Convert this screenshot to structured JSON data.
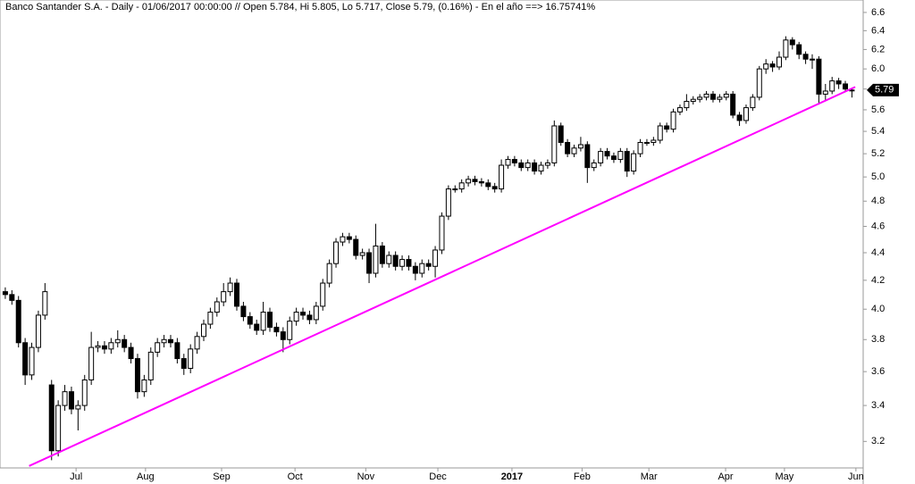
{
  "chart_data": {
    "type": "candlestick",
    "title": "Banco Santander S.A. - Daily - 01/06/2017 00:00:00 // Open 5.784, Hi 5.805, Lo 5.717, Close 5.79, (0.16%) - En el año ==> 16.75741%",
    "log_scale": true,
    "up_color": "#ffffff",
    "down_color": "#000000",
    "outline_color": "#000000",
    "open": [
      4.12,
      4.1,
      4.06,
      3.78,
      3.58,
      3.75,
      3.96,
      3.52,
      3.15,
      3.4,
      3.48,
      3.38,
      3.4,
      3.55,
      3.75,
      3.76,
      3.74,
      3.78,
      3.8,
      3.75,
      3.68,
      3.48,
      3.55,
      3.72,
      3.78,
      3.8,
      3.78,
      3.68,
      3.62,
      3.74,
      3.82,
      3.9,
      3.98,
      4.05,
      4.12,
      4.18,
      4.02,
      3.95,
      3.9,
      3.86,
      3.98,
      3.88,
      3.85,
      3.8,
      3.92,
      3.98,
      3.96,
      3.93,
      4.02,
      4.18,
      4.32,
      4.48,
      4.52,
      4.5,
      4.38,
      4.4,
      4.25,
      4.45,
      4.32,
      4.38,
      4.3,
      4.35,
      4.3,
      4.25,
      4.32,
      4.3,
      4.42,
      4.68,
      4.9,
      4.9,
      4.95,
      4.98,
      4.96,
      4.95,
      4.92,
      4.9,
      5.1,
      5.15,
      5.12,
      5.08,
      5.12,
      5.05,
      5.1,
      5.12,
      5.45,
      5.3,
      5.2,
      5.25,
      5.28,
      5.08,
      5.12,
      5.22,
      5.18,
      5.15,
      5.22,
      5.05,
      5.2,
      5.3,
      5.3,
      5.32,
      5.45,
      5.42,
      5.58,
      5.62,
      5.68,
      5.7,
      5.72,
      5.75,
      5.7,
      5.72,
      5.75,
      5.55,
      5.5,
      5.62,
      5.72,
      6.0,
      6.05,
      6.02,
      6.12,
      6.3,
      6.25,
      6.15,
      6.1,
      6.1,
      5.75,
      5.78,
      5.88,
      5.85,
      5.784
    ],
    "high": [
      4.15,
      4.13,
      4.09,
      3.81,
      3.78,
      3.99,
      4.18,
      3.55,
      3.43,
      3.52,
      3.51,
      3.43,
      3.58,
      3.85,
      3.79,
      3.79,
      3.81,
      3.86,
      3.83,
      3.78,
      3.71,
      3.58,
      3.75,
      3.81,
      3.83,
      3.83,
      3.81,
      3.71,
      3.77,
      3.85,
      3.93,
      4.01,
      4.08,
      4.18,
      4.22,
      4.21,
      4.05,
      3.98,
      3.93,
      4.05,
      4.01,
      3.91,
      3.88,
      3.95,
      4.01,
      4.01,
      3.99,
      4.05,
      4.21,
      4.35,
      4.51,
      4.55,
      4.55,
      4.53,
      4.43,
      4.43,
      4.62,
      4.48,
      4.41,
      4.41,
      4.38,
      4.38,
      4.33,
      4.35,
      4.35,
      4.45,
      4.71,
      4.93,
      4.93,
      4.98,
      5.01,
      5.01,
      4.99,
      4.98,
      4.95,
      5.15,
      5.18,
      5.18,
      5.15,
      5.15,
      5.15,
      5.13,
      5.15,
      5.5,
      5.48,
      5.33,
      5.28,
      5.35,
      5.31,
      5.15,
      5.25,
      5.25,
      5.21,
      5.25,
      5.25,
      5.23,
      5.33,
      5.33,
      5.35,
      5.48,
      5.48,
      5.61,
      5.65,
      5.75,
      5.73,
      5.75,
      5.78,
      5.78,
      5.75,
      5.78,
      5.78,
      5.58,
      5.65,
      5.75,
      6.03,
      6.1,
      6.08,
      6.18,
      6.34,
      6.33,
      6.28,
      6.18,
      6.15,
      6.13,
      5.85,
      5.92,
      5.91,
      5.88,
      5.805
    ],
    "low": [
      4.07,
      4.03,
      3.75,
      3.52,
      3.55,
      3.72,
      3.93,
      3.1,
      3.12,
      3.37,
      3.35,
      3.26,
      3.37,
      3.52,
      3.72,
      3.71,
      3.71,
      3.75,
      3.72,
      3.65,
      3.44,
      3.45,
      3.52,
      3.69,
      3.75,
      3.75,
      3.65,
      3.58,
      3.59,
      3.71,
      3.79,
      3.87,
      3.95,
      4.02,
      4.09,
      3.99,
      3.92,
      3.87,
      3.83,
      3.83,
      3.85,
      3.82,
      3.72,
      3.77,
      3.89,
      3.93,
      3.9,
      3.9,
      3.99,
      4.15,
      4.29,
      4.45,
      4.47,
      4.35,
      4.35,
      4.18,
      4.22,
      4.29,
      4.29,
      4.27,
      4.27,
      4.27,
      4.2,
      4.22,
      4.27,
      4.22,
      4.39,
      4.65,
      4.87,
      4.87,
      4.92,
      4.93,
      4.92,
      4.89,
      4.87,
      4.87,
      5.07,
      5.09,
      5.05,
      5.05,
      5.02,
      5.02,
      5.07,
      5.09,
      5.27,
      5.17,
      5.17,
      5.22,
      4.95,
      5.05,
      5.09,
      5.15,
      5.12,
      5.12,
      5.0,
      5.02,
      5.17,
      5.27,
      5.27,
      5.29,
      5.39,
      5.39,
      5.55,
      5.59,
      5.65,
      5.67,
      5.69,
      5.67,
      5.67,
      5.69,
      5.52,
      5.45,
      5.47,
      5.59,
      5.69,
      5.95,
      5.97,
      5.99,
      6.09,
      6.2,
      6.1,
      6.05,
      6.0,
      5.65,
      5.68,
      5.75,
      5.8,
      5.77,
      5.717
    ],
    "close": [
      4.1,
      4.06,
      3.78,
      3.58,
      3.75,
      3.96,
      4.12,
      3.15,
      3.4,
      3.48,
      3.38,
      3.4,
      3.55,
      3.75,
      3.76,
      3.74,
      3.78,
      3.8,
      3.75,
      3.68,
      3.48,
      3.55,
      3.72,
      3.78,
      3.8,
      3.78,
      3.68,
      3.62,
      3.74,
      3.82,
      3.9,
      3.98,
      4.05,
      4.12,
      4.18,
      4.02,
      3.95,
      3.9,
      3.86,
      3.98,
      3.88,
      3.85,
      3.8,
      3.92,
      3.98,
      3.96,
      3.93,
      4.02,
      4.18,
      4.32,
      4.48,
      4.52,
      4.5,
      4.38,
      4.4,
      4.25,
      4.45,
      4.32,
      4.38,
      4.3,
      4.35,
      4.3,
      4.25,
      4.32,
      4.3,
      4.42,
      4.68,
      4.9,
      4.9,
      4.95,
      4.98,
      4.96,
      4.95,
      4.92,
      4.9,
      5.1,
      5.15,
      5.12,
      5.08,
      5.12,
      5.05,
      5.1,
      5.12,
      5.45,
      5.3,
      5.2,
      5.25,
      5.28,
      5.08,
      5.12,
      5.22,
      5.18,
      5.15,
      5.22,
      5.05,
      5.2,
      5.3,
      5.3,
      5.32,
      5.45,
      5.42,
      5.58,
      5.62,
      5.68,
      5.7,
      5.72,
      5.75,
      5.7,
      5.72,
      5.75,
      5.55,
      5.5,
      5.62,
      5.72,
      6.0,
      6.05,
      6.02,
      6.12,
      6.3,
      6.25,
      6.15,
      6.1,
      6.1,
      5.75,
      5.78,
      5.88,
      5.85,
      5.8,
      5.79
    ],
    "trendline": {
      "color": "#ff00ff",
      "x": [
        3.6,
        128.5
      ],
      "values": [
        3.07,
        5.82
      ]
    },
    "xlim": [
      -0.8,
      129.7
    ],
    "xticks": [
      {
        "value": 10.7,
        "label": "Jul"
      },
      {
        "value": 21.2,
        "label": "Aug"
      },
      {
        "value": 32.7,
        "label": "Sep"
      },
      {
        "value": 43.8,
        "label": "Oct"
      },
      {
        "value": 54.5,
        "label": "Nov"
      },
      {
        "value": 65.4,
        "label": "Dec"
      },
      {
        "value": 76.6,
        "label": "2017"
      },
      {
        "value": 87.2,
        "label": "Feb"
      },
      {
        "value": 97.3,
        "label": "Mar"
      },
      {
        "value": 108.9,
        "label": "Apr"
      },
      {
        "value": 117.8,
        "label": "May"
      },
      {
        "value": 128.6,
        "label": "Jun"
      }
    ],
    "ylim": [
      3.06,
      6.74
    ],
    "yticks": [
      3.2,
      3.4,
      3.6,
      3.8,
      {
        "value": 4,
        "label": "4.0"
      },
      4.2,
      4.4,
      4.6,
      4.8,
      {
        "value": 5,
        "label": "5.0"
      },
      5.2,
      5.4,
      5.6,
      5.8,
      {
        "value": 6,
        "label": "6.0"
      },
      6.2,
      6.4,
      6.6
    ]
  }
}
